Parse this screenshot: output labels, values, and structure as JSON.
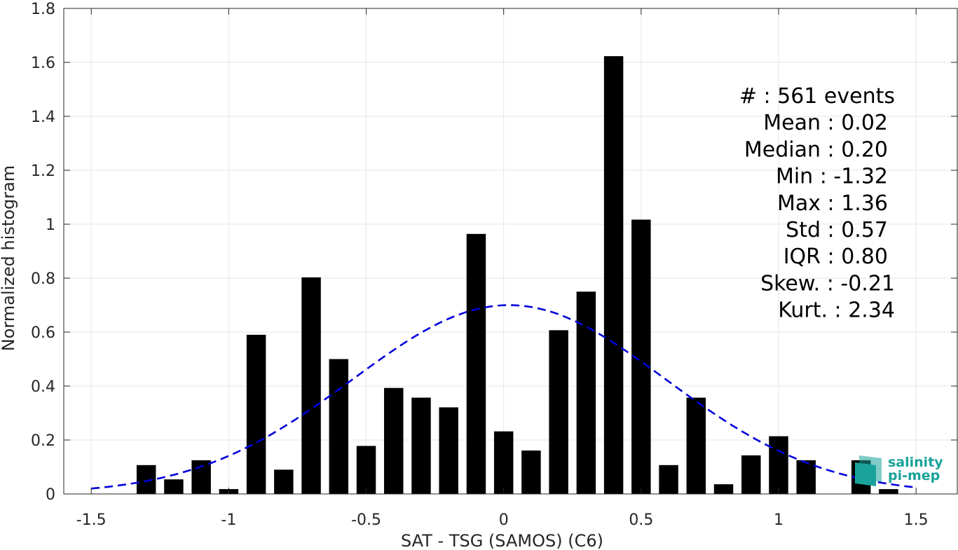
{
  "chart_data": {
    "type": "bar",
    "xlabel": "SAT - TSG (SAMOS) (C6)",
    "ylabel": "Normalized histogram",
    "xlim": [
      -1.6,
      1.65
    ],
    "ylim": [
      0,
      1.8
    ],
    "xticks": [
      "-1.5",
      "-1",
      "-0.5",
      "0",
      "0.5",
      "1",
      "1.5"
    ],
    "yticks": [
      "0",
      "0.2",
      "0.4",
      "0.6",
      "0.8",
      "1",
      "1.2",
      "1.4",
      "1.6",
      "1.8"
    ],
    "grid": true,
    "bar_width": 0.07,
    "bar_color": "#000000",
    "bins": [
      {
        "x": -1.3,
        "y": 0.107
      },
      {
        "x": -1.2,
        "y": 0.054
      },
      {
        "x": -1.1,
        "y": 0.125
      },
      {
        "x": -1.0,
        "y": 0.018
      },
      {
        "x": -0.9,
        "y": 0.59
      },
      {
        "x": -0.8,
        "y": 0.09
      },
      {
        "x": -0.7,
        "y": 0.803
      },
      {
        "x": -0.6,
        "y": 0.5
      },
      {
        "x": -0.5,
        "y": 0.178
      },
      {
        "x": -0.4,
        "y": 0.393
      },
      {
        "x": -0.3,
        "y": 0.357
      },
      {
        "x": -0.2,
        "y": 0.321
      },
      {
        "x": -0.1,
        "y": 0.964
      },
      {
        "x": 0.0,
        "y": 0.232
      },
      {
        "x": 0.1,
        "y": 0.161
      },
      {
        "x": 0.2,
        "y": 0.607
      },
      {
        "x": 0.3,
        "y": 0.75
      },
      {
        "x": 0.4,
        "y": 1.623
      },
      {
        "x": 0.5,
        "y": 1.017
      },
      {
        "x": 0.6,
        "y": 0.107
      },
      {
        "x": 0.7,
        "y": 0.357
      },
      {
        "x": 0.8,
        "y": 0.036
      },
      {
        "x": 0.9,
        "y": 0.143
      },
      {
        "x": 1.0,
        "y": 0.214
      },
      {
        "x": 1.1,
        "y": 0.125
      },
      {
        "x": 1.3,
        "y": 0.125
      },
      {
        "x": 1.4,
        "y": 0.018
      }
    ],
    "fit_curve": {
      "style": "dashed",
      "color": "#0000dd",
      "mean": 0.02,
      "std": 0.57,
      "x_range": [
        -1.5,
        1.5
      ]
    },
    "stats": [
      "#  : 561 events",
      "Mean : 0.02",
      "Median : 0.20",
      "Min : -1.32",
      "Max : 1.36",
      "Std : 0.57",
      "IQR : 0.80",
      "Skew. : -0.21",
      "Kurt. : 2.34"
    ],
    "logo": {
      "line1": "salinity",
      "line2": "pi-mep",
      "color": "#1aa39a"
    }
  }
}
